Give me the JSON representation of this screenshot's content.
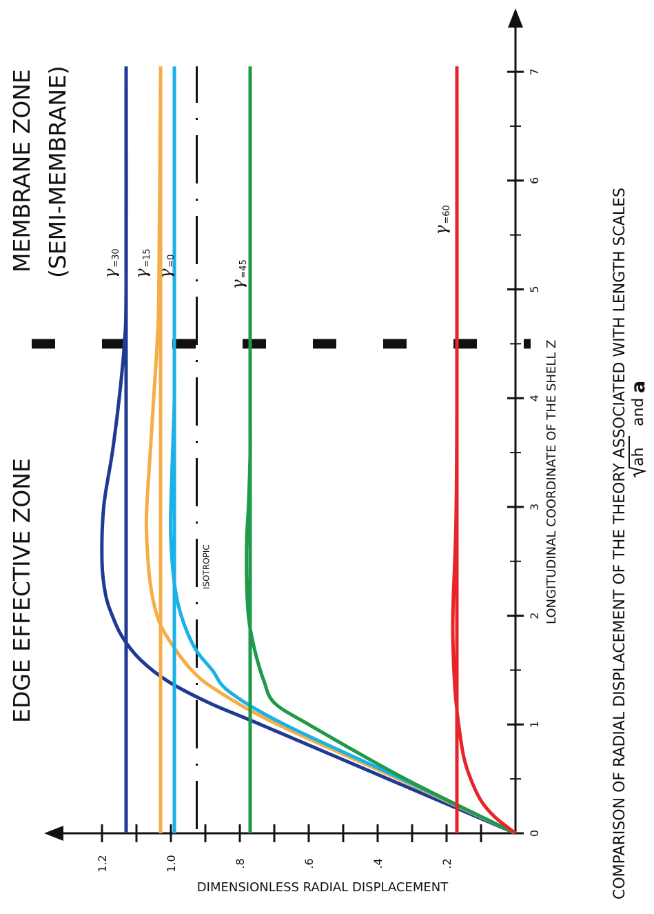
{
  "chart_data": {
    "type": "line",
    "orientation": "rotated-90",
    "title_left": "EDGE EFFECTIVE ZONE",
    "title_right_line1": "MEMBRANE ZONE",
    "title_right_line2": "(SEMI-MEMBRANE)",
    "xlabel": "LONGITUDINAL COORDINATE OF THE SHELL Z",
    "ylabel": "DIMENSIONLESS RADIAL DISPLACEMENT",
    "caption_line1": "COMPARISON OF RADIAL DISPLACEMENT OF THE THEORY ASSOCIATED WITH LENGTH SCALES",
    "caption_sqrt": "ah",
    "caption_and": "and",
    "caption_a": "a",
    "xlim": [
      0,
      7.6
    ],
    "ylim": [
      0,
      1.33
    ],
    "x_ticks": [
      0,
      1,
      2,
      3,
      4,
      5,
      6,
      7
    ],
    "x_tick_labels": [
      "0",
      "1",
      "2",
      "3",
      "4",
      "5",
      "6",
      "7"
    ],
    "y_ticks": [
      0.1,
      0.2,
      0.3,
      0.4,
      0.5,
      0.6,
      0.7,
      0.8,
      0.9,
      1.0,
      1.1,
      1.2
    ],
    "y_tick_labels": [
      {
        "value": 0.2,
        "text": ".2"
      },
      {
        "value": 0.4,
        "text": ".4"
      },
      {
        "value": 0.6,
        "text": ".6"
      },
      {
        "value": 0.8,
        "text": ".8"
      },
      {
        "value": 1.0,
        "text": "1.0"
      },
      {
        "value": 1.2,
        "text": "1.2"
      }
    ],
    "zone_boundary_x": 4.5,
    "isotropic_label": "ISOTROPIC",
    "isotropic_value": 0.925,
    "series": [
      {
        "name": "γ=30",
        "symbol": "γ",
        "sub": "=30",
        "color": "#1f3a93",
        "asymptote": 1.13,
        "label_at": [
          5.1,
          1.16
        ],
        "x": [
          0,
          0.5,
          1.0,
          1.2,
          1.4,
          1.6,
          1.8,
          2.0,
          2.2,
          2.5,
          3.0,
          3.5,
          4.0,
          4.5,
          5.0,
          7.0
        ],
        "y": [
          0,
          0.37,
          0.74,
          0.89,
          1.01,
          1.09,
          1.14,
          1.17,
          1.19,
          1.2,
          1.195,
          1.17,
          1.15,
          1.135,
          1.13,
          1.13
        ]
      },
      {
        "name": "γ=15",
        "symbol": "γ",
        "sub": "=15",
        "color": "#f5ae45",
        "asymptote": 1.03,
        "label_at": [
          5.1,
          1.07
        ],
        "x": [
          0,
          0.5,
          1.0,
          1.3,
          1.5,
          1.8,
          2.0,
          2.3,
          2.7,
          3.0,
          3.5,
          4.0,
          4.5,
          5.0,
          7.0
        ],
        "y": [
          0,
          0.34,
          0.69,
          0.86,
          0.94,
          1.01,
          1.04,
          1.06,
          1.07,
          1.07,
          1.06,
          1.05,
          1.04,
          1.035,
          1.03
        ]
      },
      {
        "name": "γ=0",
        "symbol": "γ",
        "sub": "=0",
        "color": "#1ab0e8",
        "asymptote": 0.99,
        "label_at": [
          5.1,
          1.0
        ],
        "x": [
          0,
          0.5,
          1.0,
          1.3,
          1.5,
          1.7,
          2.0,
          2.3,
          2.7,
          3.0,
          3.5,
          4.0,
          4.5,
          7.0
        ],
        "y": [
          0,
          0.33,
          0.67,
          0.83,
          0.88,
          0.93,
          0.97,
          0.99,
          1.0,
          1.0,
          0.995,
          0.99,
          0.99,
          0.99
        ]
      },
      {
        "name": "γ=45",
        "symbol": "γ",
        "sub": "=45",
        "color": "#1e9a4a",
        "asymptote": 0.77,
        "label_at": [
          5.0,
          0.79
        ],
        "x": [
          0,
          0.5,
          1.0,
          1.2,
          1.4,
          1.6,
          1.8,
          2.0,
          2.3,
          2.7,
          3.0,
          3.5,
          4.0,
          7.0
        ],
        "y": [
          0,
          0.32,
          0.6,
          0.7,
          0.73,
          0.75,
          0.765,
          0.775,
          0.78,
          0.78,
          0.775,
          0.77,
          0.77,
          0.77
        ]
      },
      {
        "name": "γ=60",
        "symbol": "γ",
        "sub": "=60",
        "color": "#e8242b",
        "asymptote": 0.17,
        "label_at": [
          5.5,
          0.2
        ],
        "x": [
          0,
          0.15,
          0.3,
          0.5,
          0.7,
          1.0,
          1.3,
          1.6,
          1.9,
          2.2,
          2.6,
          3.0,
          4.0,
          7.0
        ],
        "y": [
          0,
          0.06,
          0.1,
          0.13,
          0.15,
          0.165,
          0.175,
          0.18,
          0.182,
          0.18,
          0.175,
          0.172,
          0.17,
          0.17
        ]
      }
    ]
  }
}
